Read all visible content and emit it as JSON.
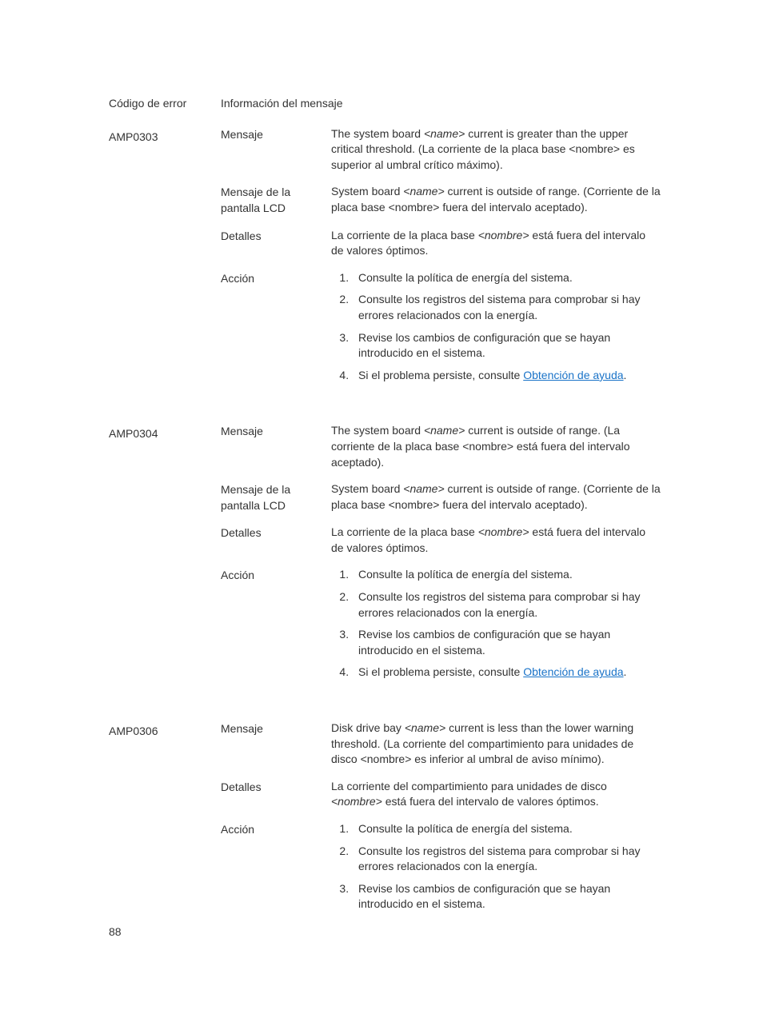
{
  "header": {
    "col1": "Código de error",
    "col2": "Información del mensaje"
  },
  "page_number": "88",
  "colors": {
    "text": "#333333",
    "link": "#1a73c8",
    "background": "#ffffff"
  },
  "typography": {
    "body_fontsize": 14,
    "label_weight": 500
  },
  "labels": {
    "mensaje": "Mensaje",
    "lcd": "Mensaje de la pantalla LCD",
    "detalles": "Detalles",
    "accion": "Acción"
  },
  "common": {
    "name_placeholder": "<name>",
    "nombre_placeholder": "<nombre>",
    "help_prefix": "Si el problema persiste, consulte ",
    "help_link": "Obtención de ayuda",
    "help_suffix": "."
  },
  "entries": [
    {
      "code": "AMP0303",
      "mensaje_pre": "The system board ",
      "mensaje_mid": " current is greater than the upper critical threshold. (La corriente de la placa base ",
      "mensaje_post": " es superior al umbral crítico máximo).",
      "lcd_pre": "System board ",
      "lcd_mid": " current is outside of range. (Corriente de la placa base ",
      "lcd_post": " fuera del intervalo aceptado).",
      "det_pre": "La corriente de la placa base ",
      "det_post": " está fuera del intervalo de valores óptimos.",
      "steps": [
        "Consulte la política de energía del sistema.",
        "Consulte los registros del sistema para comprobar si hay errores relacionados con la energía.",
        "Revise los cambios de configuración que se hayan introducido en el sistema."
      ],
      "has_help": true,
      "has_lcd": true
    },
    {
      "code": "AMP0304",
      "mensaje_pre": "The system board ",
      "mensaje_mid": " current is outside of range. (La corriente de la placa base ",
      "mensaje_post": " está fuera del intervalo aceptado).",
      "lcd_pre": "System board ",
      "lcd_mid": " current is outside of range. (Corriente de la placa base ",
      "lcd_post": " fuera del intervalo aceptado).",
      "det_pre": "La corriente de la placa base ",
      "det_post": " está fuera del intervalo de valores óptimos.",
      "steps": [
        "Consulte la política de energía del sistema.",
        "Consulte los registros del sistema para comprobar si hay errores relacionados con la energía.",
        "Revise los cambios de configuración que se hayan introducido en el sistema."
      ],
      "has_help": true,
      "has_lcd": true
    },
    {
      "code": "AMP0306",
      "mensaje_pre": "Disk drive bay ",
      "mensaje_mid": " current is less than the lower warning threshold. (La corriente del compartimiento para unidades de disco ",
      "mensaje_post": " es inferior al umbral de aviso mínimo).",
      "det_pre": "La corriente del compartimiento para unidades de disco ",
      "det_post": " está fuera del intervalo de valores óptimos.",
      "steps": [
        "Consulte la política de energía del sistema.",
        "Consulte los registros del sistema para comprobar si hay errores relacionados con la energía.",
        "Revise los cambios de configuración que se hayan introducido en el sistema."
      ],
      "has_help": false,
      "has_lcd": false
    }
  ]
}
